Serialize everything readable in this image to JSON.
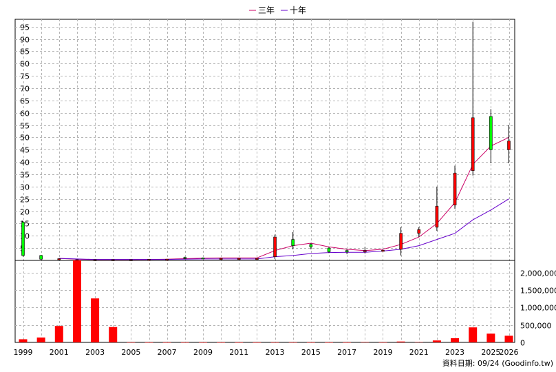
{
  "legend": [
    {
      "label": "三年",
      "color": "#cc0066"
    },
    {
      "label": "十年",
      "color": "#6600cc"
    }
  ],
  "credit": "資料日期: 09/24  (Goodinfo.tw)",
  "chart_data": {
    "type": "candlestick+bar",
    "x_tick_labels": [
      "1999",
      "2001",
      "2003",
      "2005",
      "2007",
      "2009",
      "2011",
      "2013",
      "2015",
      "2017",
      "2019",
      "2021",
      "2023",
      "2025",
      "2026"
    ],
    "price_y_ticks": [
      5,
      10,
      15,
      20,
      25,
      30,
      35,
      40,
      45,
      50,
      55,
      60,
      65,
      70,
      75,
      80,
      85,
      90,
      95
    ],
    "price_ylim": [
      0,
      98
    ],
    "volume_y_ticks": [
      "0",
      "500,000",
      "1,000,000",
      "1,500,000",
      "2,000,000"
    ],
    "volume_ylim": [
      0,
      2350000
    ],
    "candles": [
      {
        "year": 1999,
        "open": 2.0,
        "close": 15.5,
        "high": 16.0,
        "low": 1.5,
        "color": "green"
      },
      {
        "year": 2000,
        "open": 0.5,
        "close": 2.0,
        "high": 2.2,
        "low": 0.3,
        "color": "green"
      },
      {
        "year": 2001,
        "open": 0.7,
        "close": 0.5,
        "high": 0.8,
        "low": 0.3,
        "color": "red"
      },
      {
        "year": 2002,
        "open": 0.3,
        "close": 0.2,
        "high": 0.4,
        "low": 0.1,
        "color": "red"
      },
      {
        "year": 2003,
        "open": 0.3,
        "close": 0.3,
        "high": 0.4,
        "low": 0.2,
        "color": "red"
      },
      {
        "year": 2004,
        "open": 0.3,
        "close": 0.3,
        "high": 0.4,
        "low": 0.2,
        "color": "red"
      },
      {
        "year": 2005,
        "open": 0.3,
        "close": 0.3,
        "high": 0.4,
        "low": 0.2,
        "color": "red"
      },
      {
        "year": 2006,
        "open": 0.4,
        "close": 0.4,
        "high": 0.5,
        "low": 0.3,
        "color": "red"
      },
      {
        "year": 2007,
        "open": 0.4,
        "close": 0.5,
        "high": 0.6,
        "low": 0.3,
        "color": "red"
      },
      {
        "year": 2008,
        "open": 0.8,
        "close": 1.2,
        "high": 1.5,
        "low": 0.5,
        "color": "green"
      },
      {
        "year": 2009,
        "open": 0.8,
        "close": 1.0,
        "high": 1.2,
        "low": 0.6,
        "color": "green"
      },
      {
        "year": 2010,
        "open": 0.8,
        "close": 0.8,
        "high": 1.0,
        "low": 0.6,
        "color": "red"
      },
      {
        "year": 2011,
        "open": 0.8,
        "close": 0.8,
        "high": 1.0,
        "low": 0.6,
        "color": "red"
      },
      {
        "year": 2012,
        "open": 0.8,
        "close": 0.8,
        "high": 1.0,
        "low": 0.6,
        "color": "red"
      },
      {
        "year": 2013,
        "open": 1.5,
        "close": 9.5,
        "high": 10.5,
        "low": 0.5,
        "color": "red"
      },
      {
        "year": 2014,
        "open": 6.0,
        "close": 8.5,
        "high": 11.5,
        "low": 4.5,
        "color": "green"
      },
      {
        "year": 2015,
        "open": 5.5,
        "close": 6.5,
        "high": 7.0,
        "low": 4.5,
        "color": "green"
      },
      {
        "year": 2016,
        "open": 3.5,
        "close": 5.0,
        "high": 5.5,
        "low": 3.0,
        "color": "green"
      },
      {
        "year": 2017,
        "open": 3.5,
        "close": 4.0,
        "high": 4.5,
        "low": 2.5,
        "color": "green"
      },
      {
        "year": 2018,
        "open": 4.0,
        "close": 3.8,
        "high": 5.5,
        "low": 2.8,
        "color": "red"
      },
      {
        "year": 2019,
        "open": 4.0,
        "close": 4.1,
        "high": 4.5,
        "low": 3.5,
        "color": "red"
      },
      {
        "year": 2020,
        "open": 4.5,
        "close": 11.0,
        "high": 13.5,
        "low": 2.0,
        "color": "red"
      },
      {
        "year": 2021,
        "open": 11.0,
        "close": 12.5,
        "high": 13.5,
        "low": 9.5,
        "color": "red"
      },
      {
        "year": 2022,
        "open": 13.5,
        "close": 22.0,
        "high": 30.0,
        "low": 12.0,
        "color": "red"
      },
      {
        "year": 2023,
        "open": 22.5,
        "close": 35.5,
        "high": 38.5,
        "low": 21.0,
        "color": "red"
      },
      {
        "year": 2024,
        "open": 36.5,
        "close": 58.0,
        "high": 97.0,
        "low": 34.5,
        "color": "red"
      },
      {
        "year": 2025,
        "open": 58.5,
        "close": 45.0,
        "high": 61.5,
        "low": 39.5,
        "color": "green"
      },
      {
        "year": 2026,
        "open": 45.0,
        "close": 48.5,
        "high": 55.0,
        "low": 39.5,
        "color": "red"
      }
    ],
    "series": [
      {
        "name": "三年",
        "color": "#cc0066",
        "points": [
          [
            2001,
            0.8
          ],
          [
            2002,
            0.5
          ],
          [
            2003,
            0.3
          ],
          [
            2004,
            0.3
          ],
          [
            2005,
            0.3
          ],
          [
            2006,
            0.4
          ],
          [
            2007,
            0.5
          ],
          [
            2008,
            0.7
          ],
          [
            2009,
            0.9
          ],
          [
            2010,
            1.0
          ],
          [
            2011,
            1.0
          ],
          [
            2012,
            1.0
          ],
          [
            2013,
            4.0
          ],
          [
            2014,
            6.0
          ],
          [
            2015,
            7.0
          ],
          [
            2016,
            5.5
          ],
          [
            2017,
            4.5
          ],
          [
            2018,
            4.0
          ],
          [
            2019,
            4.5
          ],
          [
            2020,
            6.5
          ],
          [
            2021,
            9.5
          ],
          [
            2022,
            15.0
          ],
          [
            2023,
            23.5
          ],
          [
            2024,
            39.0
          ],
          [
            2025,
            46.5
          ],
          [
            2026,
            50.0
          ]
        ]
      },
      {
        "name": "十年",
        "color": "#6600cc",
        "points": [
          [
            2001,
            0.8
          ],
          [
            2002,
            0.6
          ],
          [
            2003,
            0.4
          ],
          [
            2004,
            0.4
          ],
          [
            2005,
            0.4
          ],
          [
            2006,
            0.4
          ],
          [
            2007,
            0.4
          ],
          [
            2008,
            0.5
          ],
          [
            2009,
            0.6
          ],
          [
            2010,
            0.6
          ],
          [
            2011,
            0.6
          ],
          [
            2012,
            0.6
          ],
          [
            2013,
            1.5
          ],
          [
            2014,
            2.0
          ],
          [
            2015,
            2.8
          ],
          [
            2016,
            3.2
          ],
          [
            2017,
            3.3
          ],
          [
            2018,
            3.3
          ],
          [
            2019,
            3.8
          ],
          [
            2020,
            4.5
          ],
          [
            2021,
            6.0
          ],
          [
            2022,
            8.5
          ],
          [
            2023,
            11.0
          ],
          [
            2024,
            16.5
          ],
          [
            2025,
            20.5
          ],
          [
            2026,
            25.0
          ]
        ]
      }
    ],
    "volume": [
      {
        "year": 1999,
        "value": 90000
      },
      {
        "year": 2000,
        "value": 140000
      },
      {
        "year": 2001,
        "value": 470000
      },
      {
        "year": 2002,
        "value": 2350000
      },
      {
        "year": 2003,
        "value": 1260000
      },
      {
        "year": 2004,
        "value": 440000
      },
      {
        "year": 2005,
        "value": 3000
      },
      {
        "year": 2006,
        "value": 1000
      },
      {
        "year": 2007,
        "value": 1000
      },
      {
        "year": 2008,
        "value": 2000
      },
      {
        "year": 2009,
        "value": 1000
      },
      {
        "year": 2010,
        "value": 1000
      },
      {
        "year": 2011,
        "value": 1000
      },
      {
        "year": 2012,
        "value": 1000
      },
      {
        "year": 2013,
        "value": 3000
      },
      {
        "year": 2014,
        "value": 3000
      },
      {
        "year": 2015,
        "value": 2000
      },
      {
        "year": 2016,
        "value": 1000
      },
      {
        "year": 2017,
        "value": 1000
      },
      {
        "year": 2018,
        "value": 8000
      },
      {
        "year": 2019,
        "value": 3000
      },
      {
        "year": 2020,
        "value": 25000
      },
      {
        "year": 2021,
        "value": 10000
      },
      {
        "year": 2022,
        "value": 55000
      },
      {
        "year": 2023,
        "value": 120000
      },
      {
        "year": 2024,
        "value": 430000
      },
      {
        "year": 2025,
        "value": 250000
      },
      {
        "year": 2026,
        "value": 190000
      }
    ],
    "colors": {
      "up": "#ff0000",
      "down": "#00ff00",
      "volume": "#ff0000",
      "grid": "#b4b4b4"
    }
  }
}
